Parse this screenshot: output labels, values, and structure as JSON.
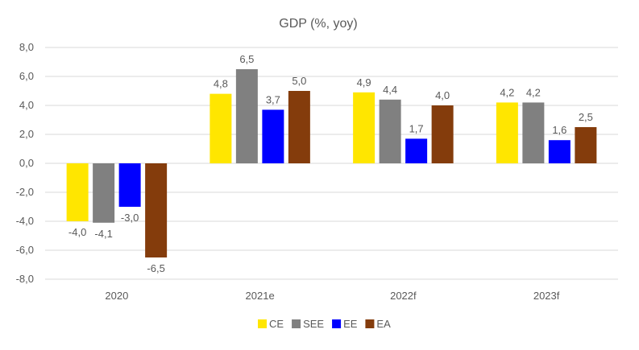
{
  "chart_data": {
    "type": "bar",
    "title": "GDP (%, yoy)",
    "xlabel": "",
    "ylabel": "",
    "categories": [
      "2020",
      "2021e",
      "2022f",
      "2023f"
    ],
    "series": [
      {
        "name": "CE",
        "color": "#FFE600",
        "values": [
          -4.0,
          4.8,
          4.9,
          4.2
        ],
        "labels": [
          "-4,0",
          "4,8",
          "4,9",
          "4,2"
        ]
      },
      {
        "name": "SEE",
        "color": "#808080",
        "values": [
          -4.1,
          6.5,
          4.4,
          4.2
        ],
        "labels": [
          "-4,1",
          "6,5",
          "4,4",
          "4,2"
        ]
      },
      {
        "name": "EE",
        "color": "#0000FF",
        "values": [
          -3.0,
          3.7,
          1.7,
          1.6
        ],
        "labels": [
          "-3,0",
          "3,7",
          "1,7",
          "1,6"
        ]
      },
      {
        "name": "EA",
        "color": "#843C0C",
        "values": [
          -6.5,
          5.0,
          4.0,
          2.5
        ],
        "labels": [
          "-6,5",
          "5,0",
          "4,0",
          "2,5"
        ]
      }
    ],
    "ylim": [
      -8,
      8
    ],
    "yticks": [
      8,
      6,
      4,
      2,
      0,
      -2,
      -4,
      -6,
      -8
    ],
    "ytick_labels": [
      "8,0",
      "6,0",
      "4,0",
      "2,0",
      "0,0",
      "-2,0",
      "-4,0",
      "-6,0",
      "-8,0"
    ],
    "grid": true,
    "legend_position": "bottom"
  }
}
